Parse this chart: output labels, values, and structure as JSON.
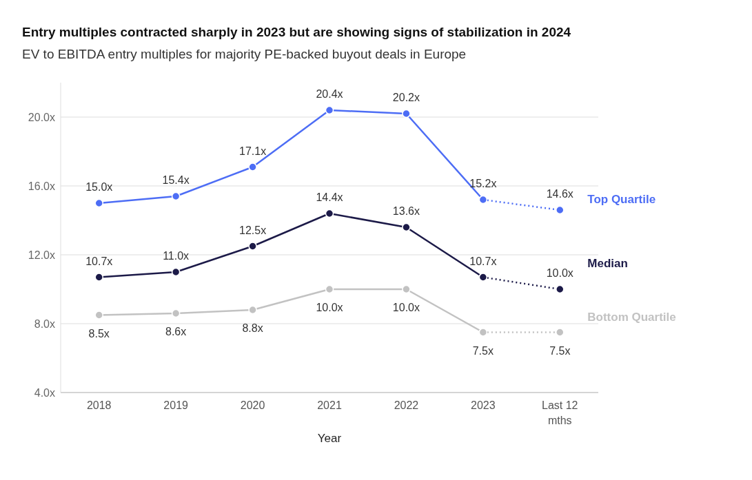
{
  "chart_data": {
    "type": "line",
    "title": "Entry multiples contracted sharply in 2023 but are showing signs of stabilization in 2024",
    "subtitle": "EV to EBITDA entry multiples for majority PE-backed buyout deals in Europe",
    "xlabel": "Year",
    "categories": [
      "2018",
      "2019",
      "2020",
      "2021",
      "2022",
      "2023",
      "Last 12 mths"
    ],
    "series": [
      {
        "name": "Top Quartile",
        "color": "#4d6df5",
        "line_style": "solid",
        "values": [
          15.0,
          15.4,
          17.1,
          20.4,
          20.2,
          15.2,
          null
        ],
        "value_labels": [
          "15.0x",
          "15.4x",
          "17.1x",
          "20.4x",
          "20.2x",
          "15.2x",
          null
        ]
      },
      {
        "name": "Median",
        "color": "#1c1a48",
        "line_style": "solid",
        "values": [
          10.7,
          11.0,
          12.5,
          14.4,
          13.6,
          10.7,
          null
        ],
        "value_labels": [
          "10.7x",
          "11.0x",
          "12.5x",
          "14.4x",
          "13.6x",
          "10.7x",
          null
        ]
      },
      {
        "name": "Bottom Quartile",
        "color": "#c2c2c2",
        "line_style": "solid",
        "values": [
          8.5,
          8.6,
          8.8,
          10.0,
          10.0,
          7.5,
          null
        ],
        "value_labels": [
          "8.5x",
          "8.6x",
          "8.8x",
          "10.0x",
          "10.0x",
          "7.5x",
          null
        ]
      },
      {
        "color": "#4d6df5",
        "line_style": "dotted",
        "values": [
          null,
          null,
          null,
          null,
          null,
          15.2,
          14.6
        ],
        "value_labels": [
          null,
          null,
          null,
          null,
          null,
          null,
          "14.6x"
        ]
      },
      {
        "color": "#1c1a48",
        "line_style": "dotted",
        "values": [
          null,
          null,
          null,
          null,
          null,
          10.7,
          10.0
        ],
        "value_labels": [
          null,
          null,
          null,
          null,
          null,
          null,
          "10.0x"
        ]
      },
      {
        "color": "#c2c2c2",
        "line_style": "dotted",
        "values": [
          null,
          null,
          null,
          null,
          null,
          7.5,
          7.5
        ],
        "value_labels": [
          null,
          null,
          null,
          null,
          null,
          null,
          "7.5x"
        ]
      }
    ],
    "ylim": [
      4,
      22
    ],
    "yticks": [
      {
        "value": 4,
        "label": "4.0x"
      },
      {
        "value": 8,
        "label": "8.0x"
      },
      {
        "value": 12,
        "label": "12.0x"
      },
      {
        "value": 16,
        "label": "16.0x"
      },
      {
        "value": 20,
        "label": "20.0x"
      }
    ],
    "grid": "y",
    "marker": "circle"
  }
}
